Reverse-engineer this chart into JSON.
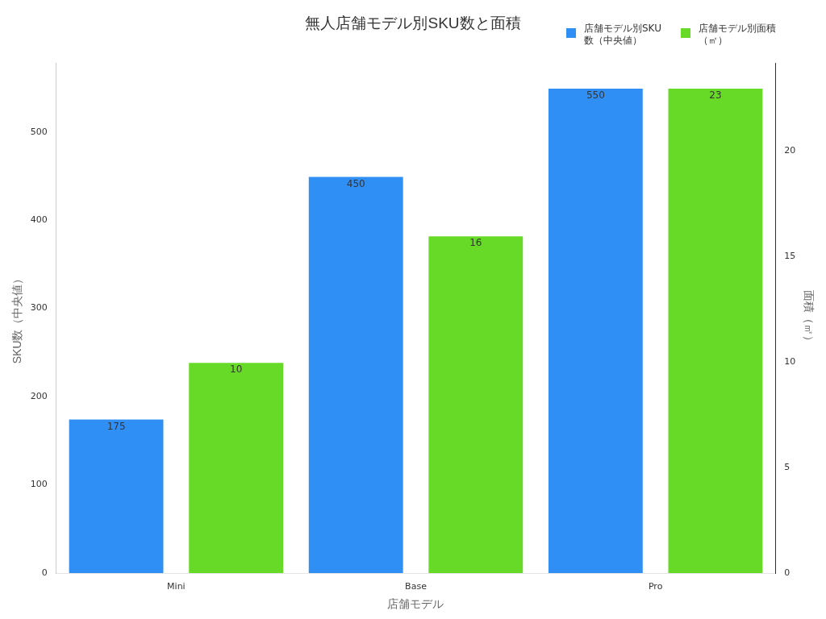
{
  "chart_data": {
    "type": "bar",
    "title": "無人店舗モデル別SKU数と面積",
    "xlabel": "店舗モデル",
    "ylabel": "SKU数（中央値）",
    "y2label": "面積（㎡）",
    "categories": [
      "Mini",
      "Base",
      "Pro"
    ],
    "series": [
      {
        "name": "店舗モデル別SKU数（中央値）",
        "color": "#2f8ff5",
        "values": [
          175,
          450,
          550
        ]
      },
      {
        "name": "店舗モデル別面積（㎡）",
        "color": "#66da26",
        "values": [
          10,
          16,
          23
        ],
        "axis": "y2"
      }
    ],
    "ylim": [
      0,
      577.5
    ],
    "yticks": [
      0,
      100,
      200,
      300,
      400,
      500
    ],
    "y2lim": [
      0,
      24.15
    ],
    "y2ticks": [
      0,
      5,
      10,
      15,
      20
    ],
    "data_labels": true,
    "grid": false,
    "legend": "top right"
  }
}
